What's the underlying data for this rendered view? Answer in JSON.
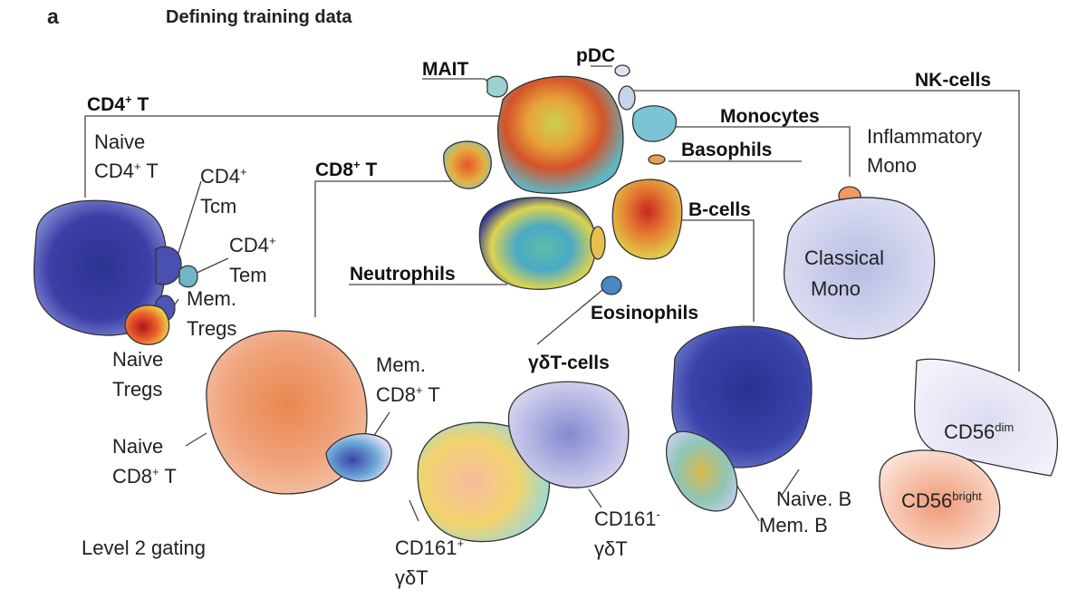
{
  "panel_letter": "a",
  "title": "Defining training data",
  "footer": "Level 2 gating",
  "labels": {
    "mait": "MAIT",
    "pdc": "pDC",
    "nk": "NK-cells",
    "cd4t": "CD4",
    "cd4t_sup": "+",
    "cd4t_tail": " T",
    "monocytes": "Monocytes",
    "basophils": "Basophils",
    "cd8t": "CD8",
    "cd8t_sup": "+",
    "cd8t_tail": " T",
    "bcells": "B-cells",
    "neutrophils": "Neutrophils",
    "eosinophils": "Eosinophils",
    "gdt": "γδT-cells",
    "naive_cd4_l1": "Naive",
    "naive_cd4_l2": "CD4",
    "naive_cd4_sup": "+",
    "naive_cd4_tail": " T",
    "cd4_tcm_l1": "CD4",
    "cd4_tcm_sup": "+",
    "cd4_tcm_l2": "Tcm",
    "cd4_tem_l1": "CD4",
    "cd4_tem_sup": "+",
    "cd4_tem_l2": "Tem",
    "mem_tregs_l1": "Mem.",
    "mem_tregs_l2": "Tregs",
    "naive_tregs_l1": "Naive",
    "naive_tregs_l2": "Tregs",
    "infl_mono_l1": "Inflammatory",
    "infl_mono_l2": "Mono",
    "classical_l1": "Classical",
    "classical_l2": "Mono",
    "mem_cd8_l1": "Mem.",
    "mem_cd8_l2": "CD8",
    "mem_cd8_sup": "+",
    "mem_cd8_tail": " T",
    "naive_cd8_l1": "Naive",
    "naive_cd8_l2": "CD8",
    "naive_cd8_sup": "+",
    "naive_cd8_tail": " T",
    "cd161p_l1": "CD161",
    "cd161p_sup": "+",
    "cd161p_l2": "γδT",
    "cd161m_l1": "CD161",
    "cd161m_sup": "-",
    "cd161m_l2": "γδT",
    "naive_b": "Naive. B",
    "mem_b": "Mem. B",
    "cd56dim": "CD56",
    "cd56dim_sup": "dim",
    "cd56bright": "CD56",
    "cd56bright_sup": "bright"
  },
  "colors": {
    "outline": "#333333",
    "blue": "#3b3f9e",
    "lightblue": "#8b8fd0",
    "cyan": "#4fb3c8",
    "yellow": "#e8d24a",
    "orange": "#e67a3a",
    "red": "#c8281e",
    "salmon": "#ee9a74",
    "lavender": "#a8acdc"
  },
  "clusters": [
    {
      "id": "cd4-naive",
      "gradient": [
        "blue",
        "blue",
        "lightblue"
      ]
    },
    {
      "id": "cd4-tcm",
      "gradient": [
        "blue",
        "lightblue"
      ]
    },
    {
      "id": "cd4-tem",
      "gradient": [
        "cyan",
        "yellow",
        "blue"
      ]
    },
    {
      "id": "mem-tregs",
      "gradient": [
        "blue",
        "cyan"
      ]
    },
    {
      "id": "naive-tregs",
      "gradient": [
        "red",
        "orange",
        "yellow"
      ]
    },
    {
      "id": "lineage-main",
      "gradient": [
        "red",
        "orange",
        "yellow",
        "cyan"
      ]
    },
    {
      "id": "cd8-small",
      "gradient": [
        "orange",
        "yellow",
        "cyan"
      ]
    },
    {
      "id": "neutrophils",
      "gradient": [
        "cyan",
        "yellow",
        "blue"
      ]
    },
    {
      "id": "bcells-top",
      "gradient": [
        "red",
        "orange",
        "yellow"
      ]
    },
    {
      "id": "cd8-naive",
      "gradient": [
        "salmon",
        "orange",
        "red"
      ]
    },
    {
      "id": "cd8-mem",
      "gradient": [
        "blue",
        "cyan",
        "yellow"
      ]
    },
    {
      "id": "gdt-cd161p",
      "gradient": [
        "salmon",
        "yellow",
        "cyan"
      ]
    },
    {
      "id": "gdt-cd161m",
      "gradient": [
        "lavender",
        "lightblue"
      ]
    },
    {
      "id": "naive-b",
      "gradient": [
        "blue",
        "blue",
        "lightblue"
      ]
    },
    {
      "id": "mem-b",
      "gradient": [
        "cyan",
        "yellow",
        "orange"
      ]
    },
    {
      "id": "classical-mono",
      "gradient": [
        "lavender",
        "lightblue"
      ]
    },
    {
      "id": "cd56dim",
      "gradient": [
        "lavender",
        "yellow"
      ]
    },
    {
      "id": "cd56bright",
      "gradient": [
        "salmon",
        "red"
      ]
    }
  ]
}
